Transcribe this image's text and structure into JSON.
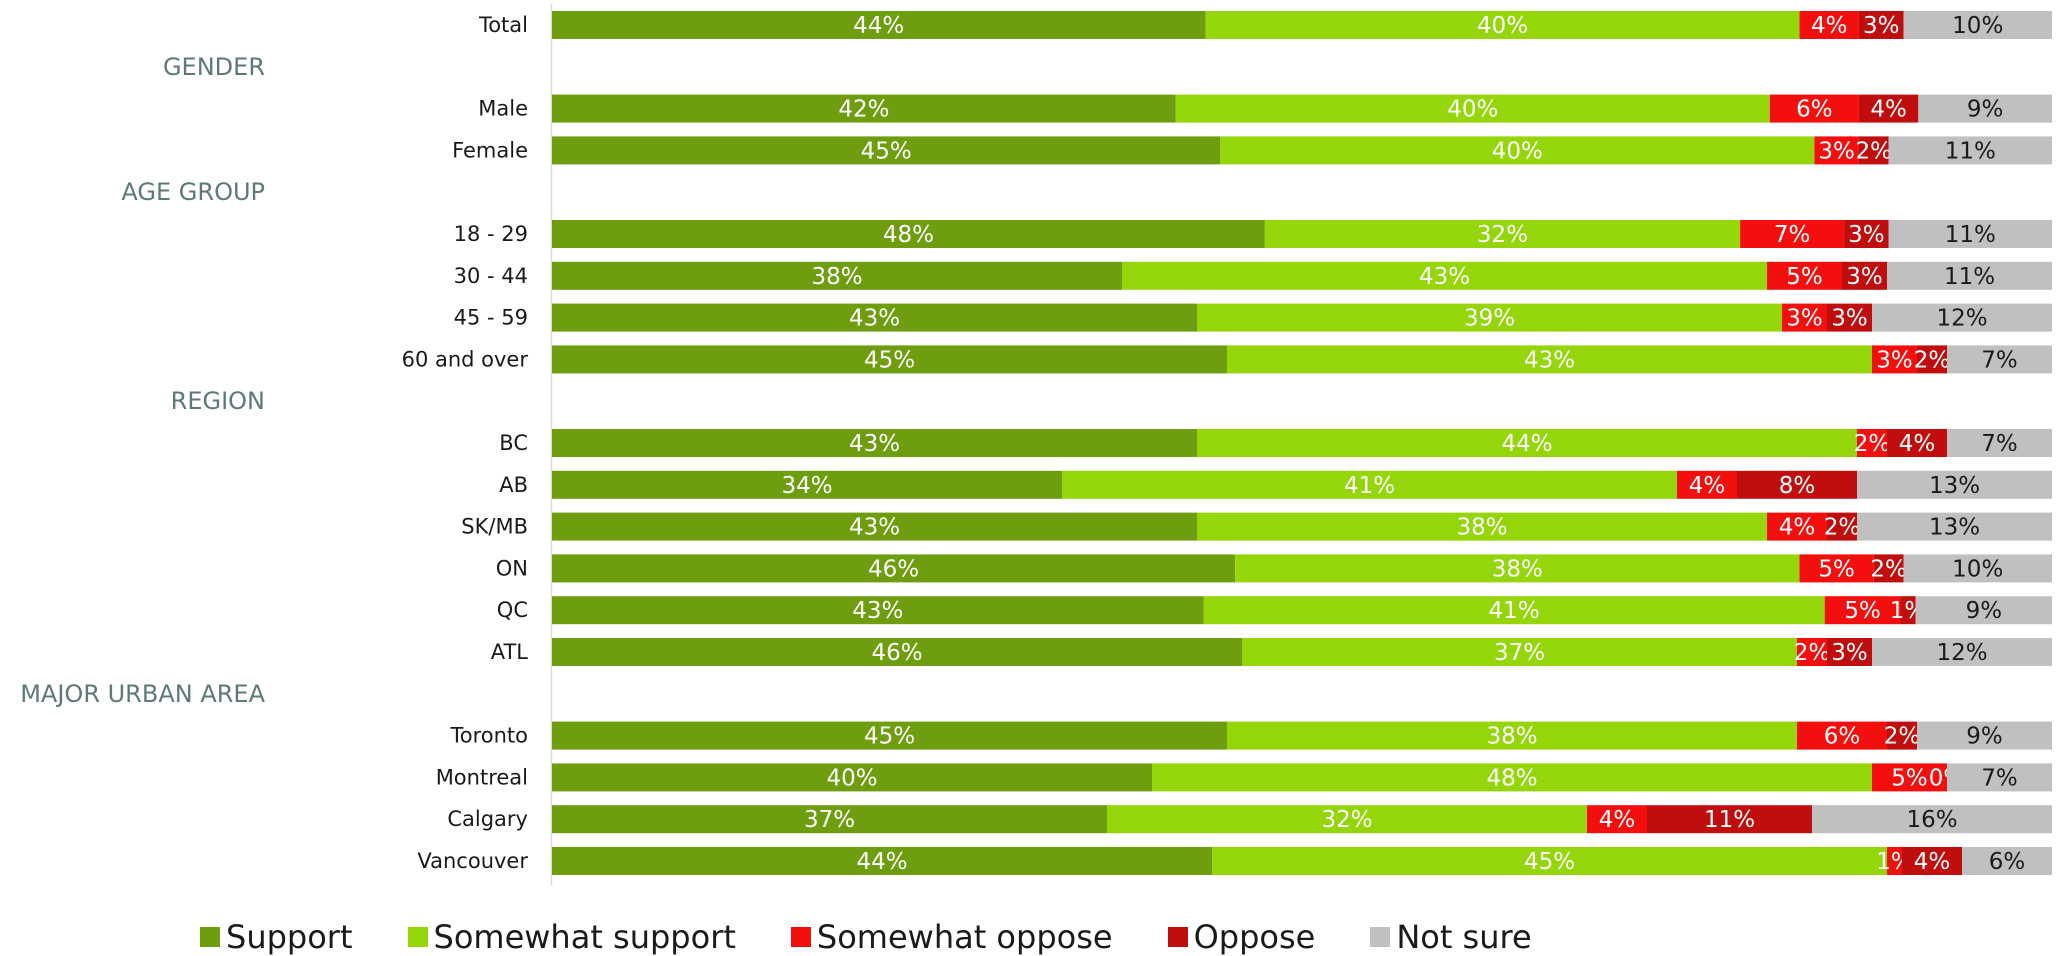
{
  "chart_data": {
    "type": "bar",
    "orientation": "horizontal",
    "stacked": true,
    "value_format": "percent",
    "series": [
      {
        "name": "Support",
        "color": "#6e9e0f"
      },
      {
        "name": "Somewhat support",
        "color": "#94d60a"
      },
      {
        "name": "Somewhat oppose",
        "color": "#f40f0f"
      },
      {
        "name": "Oppose",
        "color": "#c00e0e"
      },
      {
        "name": "Not sure",
        "color": "#c0c0c0"
      }
    ],
    "groups": [
      {
        "label": "",
        "rows": [
          {
            "label": "Total",
            "values": [
              44,
              40,
              4,
              3,
              10
            ]
          }
        ]
      },
      {
        "label": "GENDER",
        "rows": [
          {
            "label": "Male",
            "values": [
              42,
              40,
              6,
              4,
              9
            ]
          },
          {
            "label": "Female",
            "values": [
              45,
              40,
              3,
              2,
              11
            ]
          }
        ]
      },
      {
        "label": "AGE GROUP",
        "rows": [
          {
            "label": "18 - 29",
            "values": [
              48,
              32,
              7,
              3,
              11
            ]
          },
          {
            "label": "30 - 44",
            "values": [
              38,
              43,
              5,
              3,
              11
            ]
          },
          {
            "label": "45 - 59",
            "values": [
              43,
              39,
              3,
              3,
              12
            ]
          },
          {
            "label": "60 and over",
            "values": [
              45,
              43,
              3,
              2,
              7
            ]
          }
        ]
      },
      {
        "label": "REGION",
        "rows": [
          {
            "label": "BC",
            "values": [
              43,
              44,
              2,
              4,
              7
            ]
          },
          {
            "label": "AB",
            "values": [
              34,
              41,
              4,
              8,
              13
            ]
          },
          {
            "label": "SK/MB",
            "values": [
              43,
              38,
              4,
              2,
              13
            ]
          },
          {
            "label": "ON",
            "values": [
              46,
              38,
              5,
              2,
              10
            ]
          },
          {
            "label": "QC",
            "values": [
              43,
              41,
              5,
              1,
              9
            ]
          },
          {
            "label": "ATL",
            "values": [
              46,
              37,
              2,
              3,
              12
            ]
          }
        ]
      },
      {
        "label": "MAJOR URBAN AREA",
        "rows": [
          {
            "label": "Toronto",
            "values": [
              45,
              38,
              6,
              2,
              9
            ]
          },
          {
            "label": "Montreal",
            "values": [
              40,
              48,
              5,
              0,
              7
            ]
          },
          {
            "label": "Calgary",
            "values": [
              37,
              32,
              4,
              11,
              16
            ]
          },
          {
            "label": "Vancouver",
            "values": [
              44,
              45,
              1,
              4,
              6
            ]
          }
        ]
      }
    ],
    "legend_position": "bottom",
    "grid": false
  }
}
